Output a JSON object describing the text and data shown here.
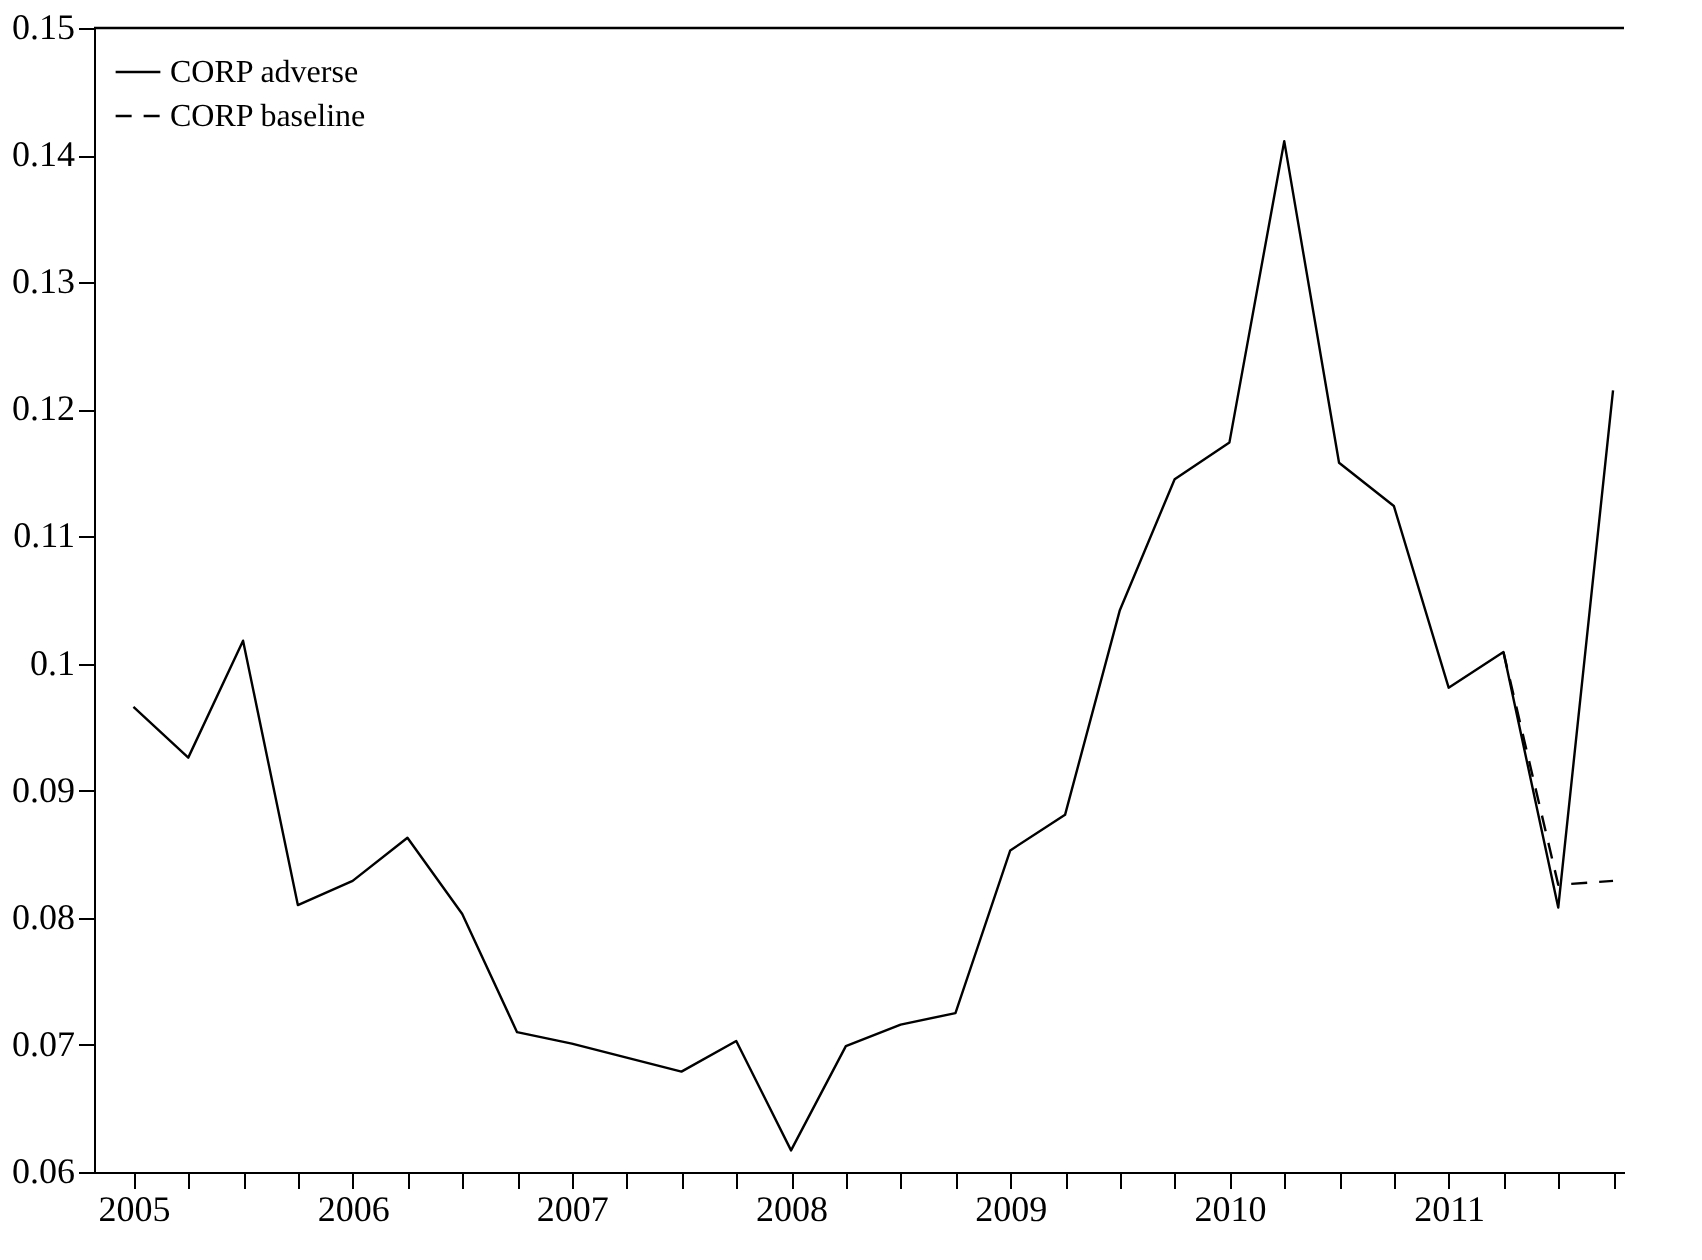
{
  "chart_data": {
    "type": "line",
    "x": [
      2005,
      2005.25,
      2005.5,
      2005.75,
      2006,
      2006.25,
      2006.5,
      2006.75,
      2007,
      2007.25,
      2007.5,
      2007.75,
      2008,
      2008.25,
      2008.5,
      2008.75,
      2009,
      2009.25,
      2009.5,
      2009.75,
      2010,
      2010.25,
      2010.5,
      2010.75,
      2011,
      2011.25,
      2011.5,
      2011.75
    ],
    "series": [
      {
        "name": "CORP adverse",
        "color": "#000000",
        "line_style": "solid",
        "values": [
          0.0966,
          0.0926,
          0.1018,
          0.081,
          0.0829,
          0.0863,
          0.0803,
          0.071,
          0.0701,
          0.069,
          0.0679,
          0.0703,
          0.0617,
          0.0699,
          0.0716,
          0.0725,
          0.0853,
          0.0881,
          0.1042,
          0.1145,
          0.1174,
          0.1411,
          0.1158,
          0.1124,
          0.0981,
          0.1009,
          0.0808,
          0.1215
        ]
      },
      {
        "name": "CORP baseline",
        "color": "#000000",
        "line_style": "dashed",
        "x": [
          2011.25,
          2011.5,
          2011.75
        ],
        "values": [
          0.1009,
          0.0826,
          0.0829
        ]
      }
    ],
    "xlim": [
      2004.82,
      2011.8
    ],
    "xticks": [
      2005,
      {
        "value": 2005.25,
        "label": null
      },
      {
        "value": 2005.5,
        "label": null
      },
      {
        "value": 2005.75,
        "label": null
      },
      2006,
      {
        "value": 2006.25,
        "label": null
      },
      {
        "value": 2006.5,
        "label": null
      },
      {
        "value": 2006.75,
        "label": null
      },
      2007,
      {
        "value": 2007.25,
        "label": null
      },
      {
        "value": 2007.5,
        "label": null
      },
      {
        "value": 2007.75,
        "label": null
      },
      2008,
      {
        "value": 2008.25,
        "label": null
      },
      {
        "value": 2008.5,
        "label": null
      },
      {
        "value": 2008.75,
        "label": null
      },
      2009,
      {
        "value": 2009.25,
        "label": null
      },
      {
        "value": 2009.5,
        "label": null
      },
      {
        "value": 2009.75,
        "label": null
      },
      2010,
      {
        "value": 2010.25,
        "label": null
      },
      {
        "value": 2010.5,
        "label": null
      },
      {
        "value": 2010.75,
        "label": null
      },
      2011,
      {
        "value": 2011.25,
        "label": null
      },
      {
        "value": 2011.5,
        "label": null
      },
      {
        "value": 2011.75,
        "label": null
      }
    ],
    "ylim": [
      0.06,
      0.15
    ],
    "yticks": [
      0.06,
      0.07,
      0.08,
      0.09,
      0.1,
      0.11,
      0.12,
      0.13,
      0.14,
      0.15
    ],
    "grid": false,
    "legend": "top left"
  }
}
